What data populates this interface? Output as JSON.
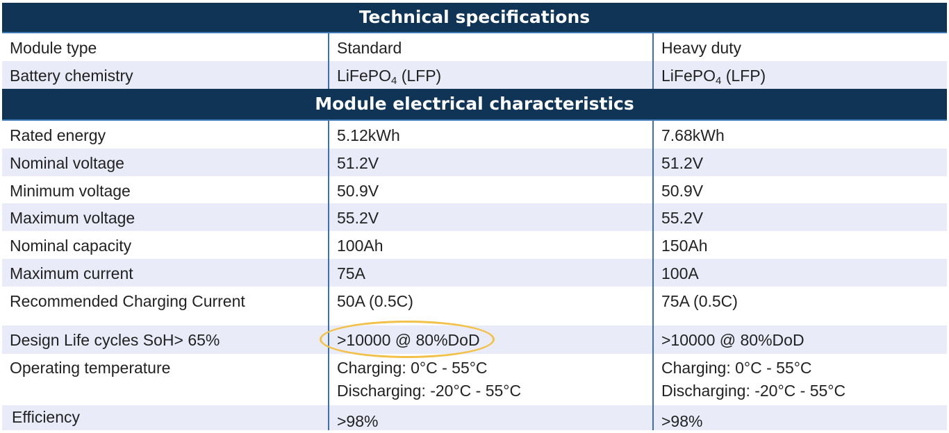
{
  "section1": {
    "title": "Technical specifications",
    "rows": [
      {
        "label": "Module type",
        "standard": "Standard",
        "heavy": "Heavy duty"
      },
      {
        "label": "Battery chemistry",
        "standard_main": "LiFePO",
        "standard_sub": "4",
        "standard_tail": " (LFP)",
        "heavy_main": "LiFePO",
        "heavy_sub": "4",
        "heavy_tail": " (LFP)"
      }
    ]
  },
  "section2": {
    "title": "Module electrical characteristics",
    "rows": [
      {
        "label": "Rated energy",
        "standard": "5.12kWh",
        "heavy": "7.68kWh"
      },
      {
        "label": "Nominal voltage",
        "standard": "51.2V",
        "heavy": "51.2V"
      },
      {
        "label": "Minimum voltage",
        "standard": "50.9V",
        "heavy": "50.9V"
      },
      {
        "label": "Maximum voltage",
        "standard": "55.2V",
        "heavy": "55.2V"
      },
      {
        "label": "Nominal capacity",
        "standard": "100Ah",
        "heavy": "150Ah"
      },
      {
        "label": "Maximum current",
        "standard": "75A",
        "heavy": "100A"
      },
      {
        "label": "Recommended Charging Current",
        "standard": "50A (0.5C)",
        "heavy": "75A (0.5C)"
      },
      {
        "label": "Design Life cycles SoH> 65%",
        "standard": ">10000 @ 80%DoD",
        "heavy": ">10000 @ 80%DoD"
      },
      {
        "label": "Operating temperature",
        "standard_l1": "Charging: 0°C - 55°C",
        "standard_l2": "Discharging: -20°C - 55°C",
        "heavy_l1": "Charging: 0°C - 55°C",
        "heavy_l2": "Discharging: -20°C - 55°C"
      },
      {
        "label": "Efficiency",
        "standard": ">98%",
        "heavy": ">98%"
      }
    ]
  },
  "colors": {
    "header_bg": "#0f3456",
    "alt_row_bg": "#e9ebf8",
    "divider": "#3d6fa8",
    "highlight": "#f2c14a"
  }
}
